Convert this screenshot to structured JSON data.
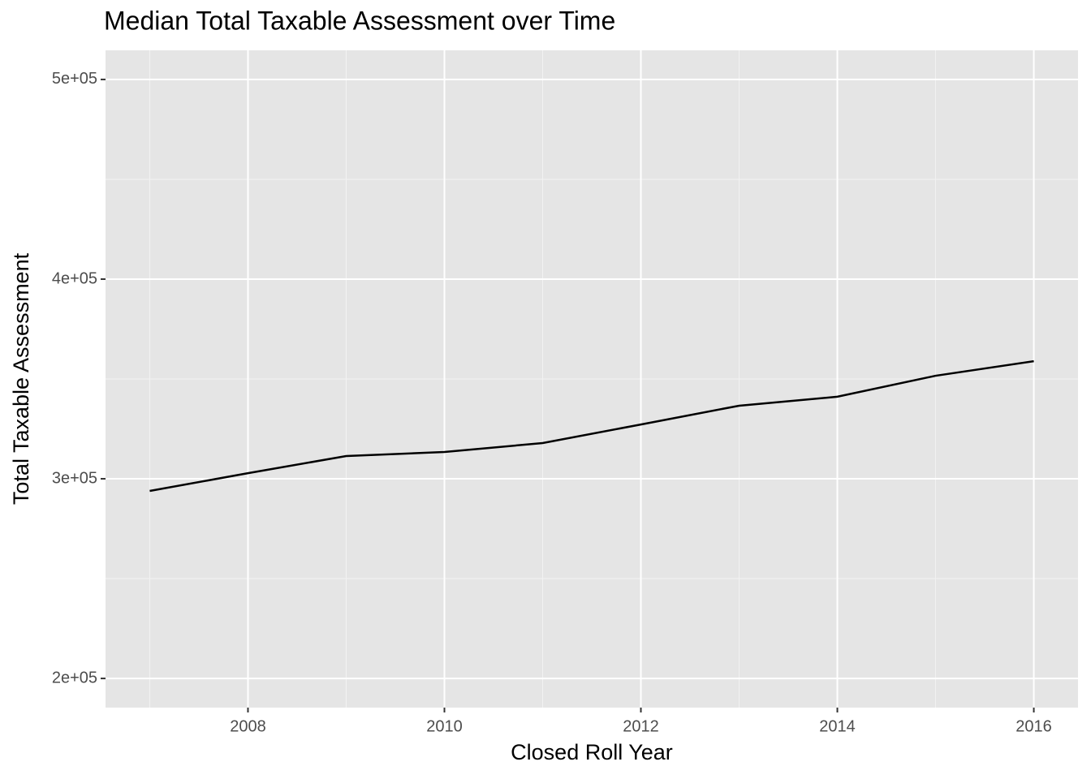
{
  "chart_data": {
    "type": "line",
    "title": "Median Total Taxable Assessment over Time",
    "x_label": "Closed Roll Year",
    "y_label": "Total Taxable Assessment",
    "x": [
      2007,
      2008,
      2009,
      2010,
      2011,
      2012,
      2013,
      2014,
      2015,
      2016
    ],
    "series": [
      {
        "color": "#000000",
        "values": [
          293900,
          302800,
          311400,
          313400,
          317900,
          327200,
          336600,
          341100,
          351600,
          358900
        ]
      }
    ],
    "xlim": [
      2006.55,
      2016.45
    ],
    "ylim": [
      185400,
      514600
    ],
    "xticks": [
      2008,
      2010,
      2012,
      2014,
      2016
    ],
    "yticks": [
      {
        "value": 200000,
        "label": "2e+05"
      },
      {
        "value": 300000,
        "label": "3e+05"
      },
      {
        "value": 400000,
        "label": "4e+05"
      },
      {
        "value": 500000,
        "label": "5e+05"
      }
    ],
    "grid": true
  }
}
